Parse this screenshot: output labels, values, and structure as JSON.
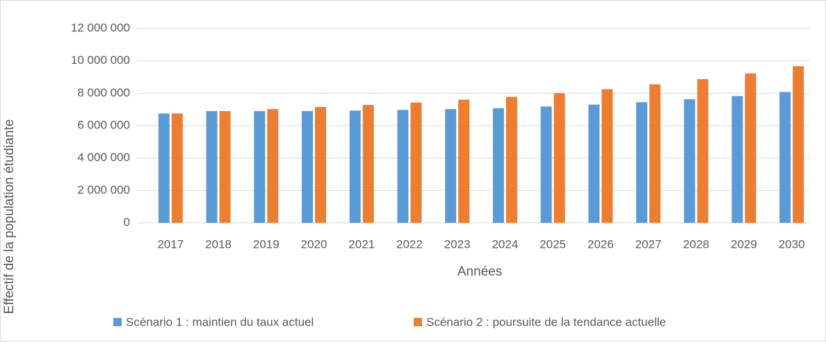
{
  "chart_data": {
    "type": "bar",
    "categories": [
      "2017",
      "2018",
      "2019",
      "2020",
      "2021",
      "2022",
      "2023",
      "2024",
      "2025",
      "2026",
      "2027",
      "2028",
      "2029",
      "2030"
    ],
    "series": [
      {
        "name": "Scénario 1 : maintien du taux actuel",
        "color": "#5b9bd5",
        "values": [
          6750000,
          6900000,
          6900000,
          6900000,
          6930000,
          6970000,
          7020000,
          7080000,
          7180000,
          7300000,
          7450000,
          7630000,
          7830000,
          8080000
        ]
      },
      {
        "name": "Scénario 2 : poursuite de la tendance actuelle",
        "color": "#ed7d31",
        "values": [
          6750000,
          6900000,
          7020000,
          7150000,
          7280000,
          7430000,
          7600000,
          7780000,
          8000000,
          8250000,
          8550000,
          8870000,
          9230000,
          9670000
        ]
      }
    ],
    "x_label": "Années",
    "y_label": "Effectif de la population étudiante",
    "ylim": [
      0,
      12000000
    ],
    "yticks": [
      0,
      {
        "value": 2000000,
        "label": "2 000 000"
      },
      {
        "value": 4000000,
        "label": "4 000 000"
      },
      {
        "value": 6000000,
        "label": "6 000 000"
      },
      {
        "value": 8000000,
        "label": "8 000 000"
      },
      {
        "value": 10000000,
        "label": "10 000 000"
      },
      {
        "value": 12000000,
        "label": "12 000 000"
      }
    ],
    "grid": true,
    "legend": "bottom"
  }
}
